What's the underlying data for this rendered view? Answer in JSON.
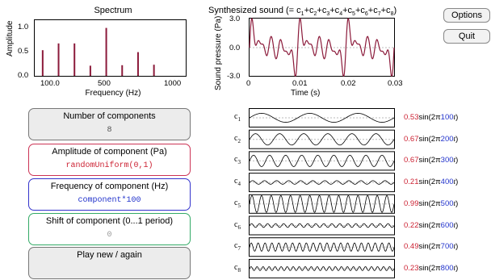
{
  "spectrum": {
    "title": "Spectrum",
    "ylabel": "Amplitude",
    "xlabel": "Frequency (Hz)",
    "xticks": [
      "100.0",
      "500",
      "1000"
    ],
    "yticks": [
      "1.0",
      "0.5",
      "0.0"
    ]
  },
  "synth": {
    "title_prefix": "Synthesized sound (= c",
    "ylabel": "Sound pressure (Pa)",
    "xlabel": "Time (s)",
    "xticks": [
      "0",
      "0.01",
      "0.02",
      "0.03"
    ],
    "yticks": [
      "3.0",
      "0.0",
      "-3.0"
    ]
  },
  "controls": [
    {
      "label": "Number of components",
      "value": "8"
    },
    {
      "label": "Amplitude of component (Pa)",
      "value": "randomUniform(0,1)"
    },
    {
      "label": "Frequency of component (Hz)",
      "value": "component*100"
    },
    {
      "label": "Shift of component (0...1 period)",
      "value": "0"
    },
    {
      "label": "Play new / again",
      "value": ""
    }
  ],
  "buttons": {
    "options": "Options",
    "quit": "Quit"
  },
  "components": [
    {
      "name": "c",
      "idx": "1",
      "amp": "0.53",
      "freq": "100"
    },
    {
      "name": "c",
      "idx": "2",
      "amp": "0.67",
      "freq": "200"
    },
    {
      "name": "c",
      "idx": "3",
      "amp": "0.67",
      "freq": "300"
    },
    {
      "name": "c",
      "idx": "4",
      "amp": "0.21",
      "freq": "400"
    },
    {
      "name": "c",
      "idx": "5",
      "amp": "0.99",
      "freq": "500"
    },
    {
      "name": "c",
      "idx": "6",
      "amp": "0.22",
      "freq": "600"
    },
    {
      "name": "c",
      "idx": "7",
      "amp": "0.49",
      "freq": "700"
    },
    {
      "name": "c",
      "idx": "8",
      "amp": "0.23",
      "freq": "800"
    }
  ],
  "formula": {
    "sin_open": "sin(2π",
    "t": "t",
    "close": ")"
  },
  "colors": {
    "amp": "#cc2233",
    "freq": "#2233cc",
    "wave": "#8b1a3a"
  }
}
